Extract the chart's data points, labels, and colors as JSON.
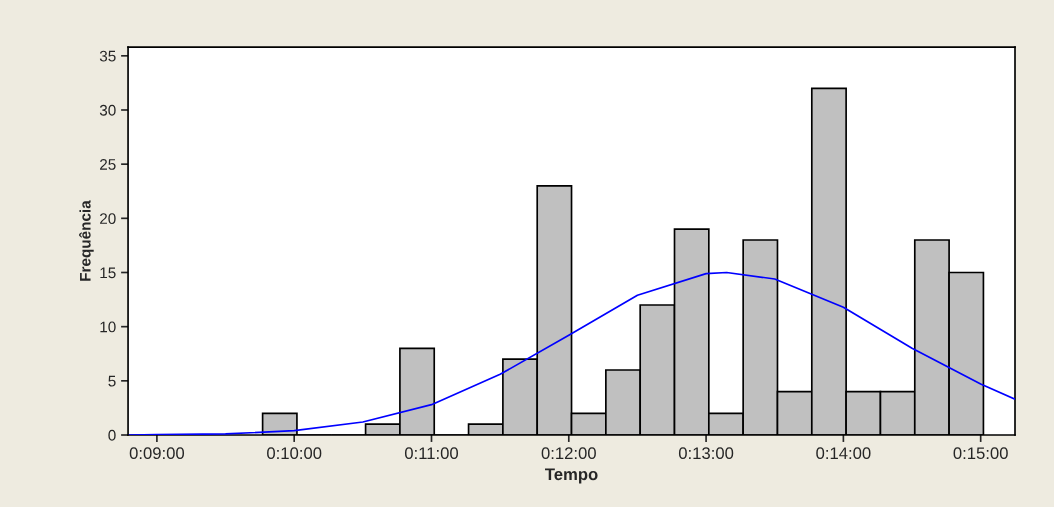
{
  "chart_data": {
    "type": "histogram",
    "xlabel": "Tempo",
    "ylabel": "Frequência",
    "bins": [
      9.77,
      10.02,
      10.27,
      10.52,
      10.77,
      11.02,
      11.27,
      11.52,
      11.77,
      12.02,
      12.27,
      12.52,
      12.77,
      13.02,
      13.27,
      13.52,
      13.77,
      14.02,
      14.27,
      14.52,
      14.77,
      15.02
    ],
    "values": [
      2,
      0,
      0,
      1,
      8,
      0,
      1,
      7,
      23,
      2,
      6,
      12,
      19,
      2,
      18,
      4,
      32,
      4,
      4,
      18,
      15
    ],
    "color": "#c0c0c0",
    "series": [
      {
        "type": "line",
        "color": "#0000ff",
        "x": [
          8.8,
          9.0,
          9.5,
          10.0,
          10.5,
          11.0,
          11.5,
          12.0,
          12.5,
          13.0,
          13.15,
          13.5,
          14.0,
          14.5,
          15.0,
          15.25
        ],
        "values": [
          0.0,
          0.03,
          0.1,
          0.4,
          1.2,
          2.8,
          5.6,
          9.2,
          12.9,
          14.9,
          15.0,
          14.4,
          11.8,
          8.0,
          4.7,
          3.3
        ]
      }
    ],
    "xlim": [
      8.79,
      15.25
    ],
    "ylim": [
      0,
      35.8
    ],
    "xticks": [
      {
        "value": 9,
        "label": "0:09:00"
      },
      {
        "value": 10,
        "label": "0:10:00"
      },
      {
        "value": 11,
        "label": "0:11:00"
      },
      {
        "value": 12,
        "label": "0:12:00"
      },
      {
        "value": 13,
        "label": "0:13:00"
      },
      {
        "value": 14,
        "label": "0:14:00"
      },
      {
        "value": 15,
        "label": "0:15:00"
      }
    ],
    "yticks": [
      0,
      5,
      10,
      15,
      20,
      25,
      30,
      35
    ],
    "grid": false,
    "legend": false
  }
}
